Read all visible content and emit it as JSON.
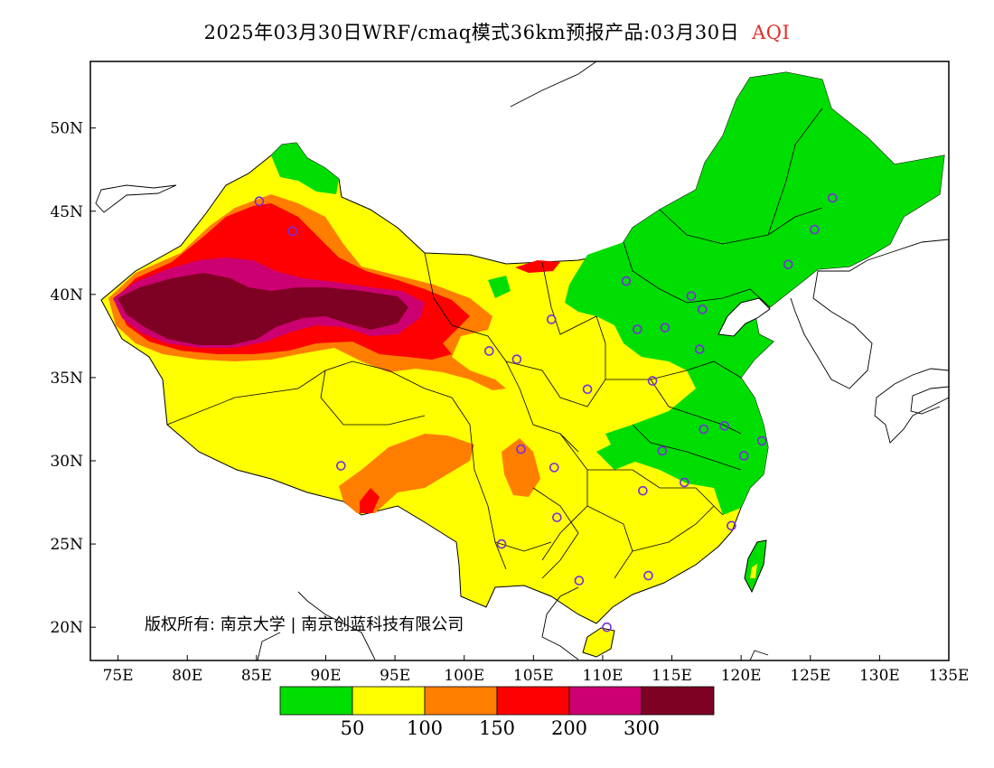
{
  "title": {
    "main": "2025年03月30日WRF/cmaq模式36km预报产品:03月30日",
    "product": "AQI"
  },
  "map": {
    "x_ticks": [
      "75E",
      "80E",
      "85E",
      "90E",
      "95E",
      "100E",
      "105E",
      "110E",
      "115E",
      "120E",
      "125E",
      "130E",
      "135E"
    ],
    "y_ticks": [
      "20N",
      "25N",
      "30N",
      "35N",
      "40N",
      "45N",
      "50N"
    ],
    "lon_range": [
      73,
      135
    ],
    "lat_range": [
      18,
      54
    ],
    "copyright": "版权所有: 南京大学 | 南京创蓝科技有限公司",
    "stations": [
      {
        "lon": 87.6,
        "lat": 43.8
      },
      {
        "lon": 85.2,
        "lat": 45.6
      },
      {
        "lon": 91.1,
        "lat": 29.7
      },
      {
        "lon": 101.8,
        "lat": 36.6
      },
      {
        "lon": 103.8,
        "lat": 36.1
      },
      {
        "lon": 106.3,
        "lat": 38.5
      },
      {
        "lon": 111.7,
        "lat": 40.8
      },
      {
        "lon": 116.4,
        "lat": 39.9
      },
      {
        "lon": 117.2,
        "lat": 39.1
      },
      {
        "lon": 114.5,
        "lat": 38.0
      },
      {
        "lon": 112.5,
        "lat": 37.9
      },
      {
        "lon": 117.0,
        "lat": 36.7
      },
      {
        "lon": 113.6,
        "lat": 34.8
      },
      {
        "lon": 108.9,
        "lat": 34.3
      },
      {
        "lon": 117.3,
        "lat": 31.9
      },
      {
        "lon": 118.8,
        "lat": 32.1
      },
      {
        "lon": 120.2,
        "lat": 30.3
      },
      {
        "lon": 121.5,
        "lat": 31.2
      },
      {
        "lon": 114.3,
        "lat": 30.6
      },
      {
        "lon": 115.9,
        "lat": 28.7
      },
      {
        "lon": 112.9,
        "lat": 28.2
      },
      {
        "lon": 106.5,
        "lat": 29.6
      },
      {
        "lon": 104.1,
        "lat": 30.7
      },
      {
        "lon": 106.7,
        "lat": 26.6
      },
      {
        "lon": 102.7,
        "lat": 25.0
      },
      {
        "lon": 108.3,
        "lat": 22.8
      },
      {
        "lon": 113.3,
        "lat": 23.1
      },
      {
        "lon": 110.3,
        "lat": 20.0
      },
      {
        "lon": 119.3,
        "lat": 26.1
      },
      {
        "lon": 123.4,
        "lat": 41.8
      },
      {
        "lon": 125.3,
        "lat": 43.9
      },
      {
        "lon": 126.6,
        "lat": 45.8
      }
    ]
  },
  "legend": {
    "colors": [
      "#00dd00",
      "#ffff00",
      "#ff7e00",
      "#ff0000",
      "#cc0070",
      "#7e0023"
    ],
    "labels": [
      "50",
      "100",
      "150",
      "200",
      "300"
    ]
  }
}
